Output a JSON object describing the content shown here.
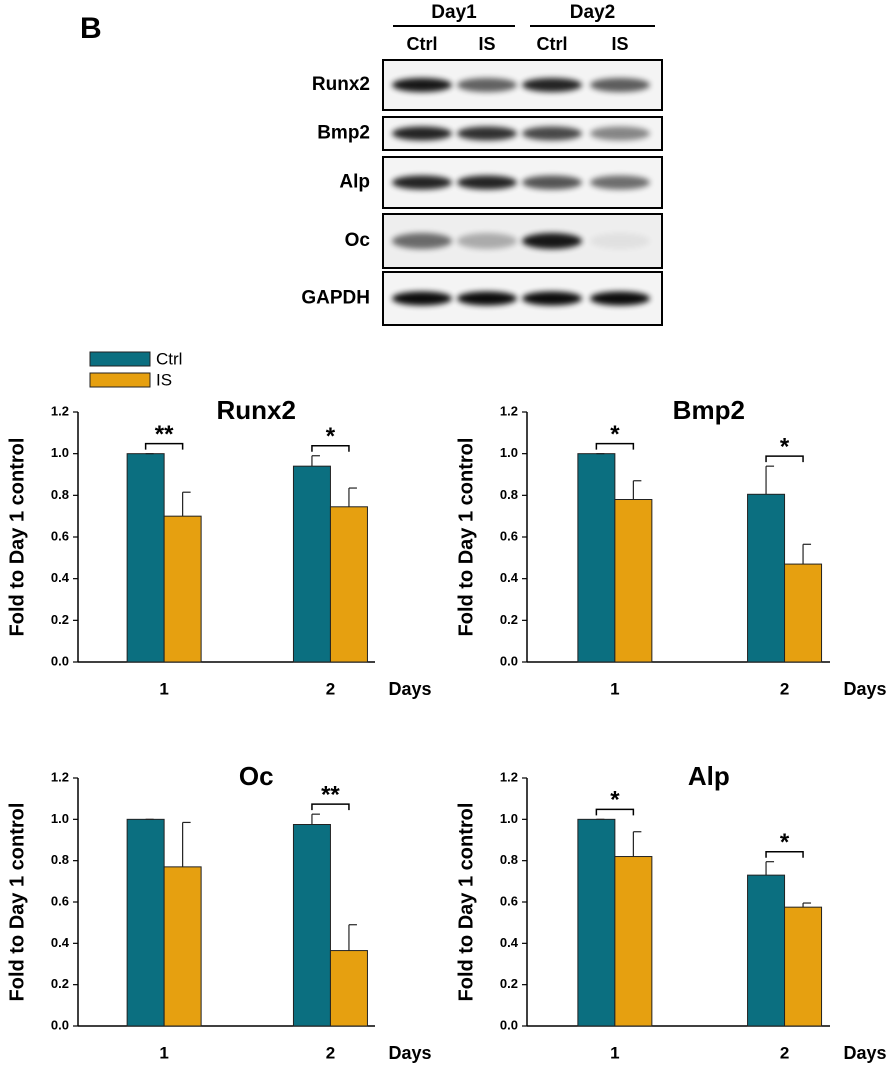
{
  "panel_label": "B",
  "blot": {
    "groups": [
      "Day1",
      "Day2"
    ],
    "lanes": [
      "Ctrl",
      "IS",
      "Ctrl",
      "IS"
    ],
    "rows": [
      "Runx2",
      "Bmp2",
      "Alp",
      "Oc",
      "GAPDH"
    ]
  },
  "chart_data": [
    {
      "type": "bar",
      "title": "Runx2",
      "ylabel": "Fold to Day 1 control",
      "xlabel": "Days",
      "categories": [
        "1",
        "2"
      ],
      "series": [
        {
          "name": "Ctrl",
          "color": "#0b6f80",
          "values": [
            1.0,
            0.94
          ],
          "errors": [
            0,
            0.05
          ]
        },
        {
          "name": "IS",
          "color": "#e6a010",
          "values": [
            0.7,
            0.745
          ],
          "errors": [
            0.115,
            0.09
          ]
        }
      ],
      "significance": [
        "**",
        "*"
      ],
      "legend": "top-left",
      "ylim": [
        0,
        1.2
      ],
      "yticks": [
        {
          "value": 0,
          "label": "0.0"
        },
        0.2,
        0.4,
        0.6,
        0.8,
        {
          "value": 1,
          "label": "1.0"
        },
        1.2
      ]
    },
    {
      "type": "bar",
      "title": "Bmp2",
      "ylabel": "Fold to Day 1 control",
      "xlabel": "Days",
      "categories": [
        "1",
        "2"
      ],
      "series": [
        {
          "color": "#0b6f80",
          "values": [
            1.0,
            0.805
          ],
          "errors": [
            0,
            0.135
          ]
        },
        {
          "color": "#e6a010",
          "values": [
            0.78,
            0.47
          ],
          "errors": [
            0.09,
            0.095
          ]
        }
      ],
      "significance": [
        "*",
        "*"
      ],
      "ylim": [
        0,
        1.2
      ],
      "yticks": [
        {
          "value": 0,
          "label": "0.0"
        },
        0.2,
        0.4,
        0.6,
        0.8,
        {
          "value": 1,
          "label": "1.0"
        },
        1.2
      ]
    },
    {
      "type": "bar",
      "title": "Oc",
      "ylabel": "Fold to Day 1 control",
      "xlabel": "Days",
      "categories": [
        "1",
        "2"
      ],
      "series": [
        {
          "color": "#0b6f80",
          "values": [
            1.0,
            0.975
          ],
          "errors": [
            0,
            0.05
          ]
        },
        {
          "color": "#e6a010",
          "values": [
            0.77,
            0.365
          ],
          "errors": [
            0.215,
            0.125
          ]
        }
      ],
      "significance": [
        null,
        "**"
      ],
      "ylim": [
        0,
        1.2
      ],
      "yticks": [
        {
          "value": 0,
          "label": "0.0"
        },
        0.2,
        0.4,
        0.6,
        0.8,
        {
          "value": 1,
          "label": "1.0"
        },
        1.2
      ]
    },
    {
      "type": "bar",
      "title": "Alp",
      "ylabel": "Fold to Day 1 control",
      "xlabel": "Days",
      "categories": [
        "1",
        "2"
      ],
      "series": [
        {
          "color": "#0b6f80",
          "values": [
            1.0,
            0.73
          ],
          "errors": [
            0,
            0.065
          ]
        },
        {
          "color": "#e6a010",
          "values": [
            0.82,
            0.575
          ],
          "errors": [
            0.12,
            0.02
          ]
        }
      ],
      "significance": [
        "*",
        "*"
      ],
      "ylim": [
        0,
        1.2
      ],
      "yticks": [
        {
          "value": 0,
          "label": "0.0"
        },
        0.2,
        0.4,
        0.6,
        0.8,
        {
          "value": 1,
          "label": "1.0"
        },
        1.2
      ]
    }
  ]
}
